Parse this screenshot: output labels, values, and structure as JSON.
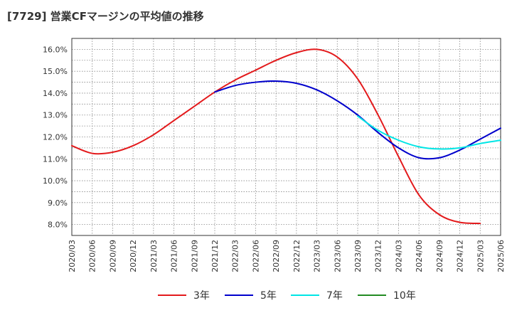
{
  "chart_data": {
    "type": "line",
    "title": "[7729]  営業CFマージンの平均値の推移",
    "xlabel": "",
    "ylabel": "",
    "ylim": [
      7.5,
      16.5
    ],
    "y_ticks": [
      8.0,
      9.0,
      10.0,
      11.0,
      12.0,
      13.0,
      14.0,
      15.0,
      16.0
    ],
    "y_tick_labels": [
      "8.0%",
      "9.0%",
      "10.0%",
      "11.0%",
      "12.0%",
      "13.0%",
      "14.0%",
      "15.0%",
      "16.0%"
    ],
    "x_tick_labels": [
      "2020/03",
      "2020/06",
      "2020/09",
      "2020/12",
      "2021/03",
      "2021/06",
      "2021/09",
      "2021/12",
      "2022/03",
      "2022/06",
      "2022/09",
      "2022/12",
      "2023/03",
      "2023/06",
      "2023/09",
      "2023/12",
      "2024/03",
      "2024/06",
      "2024/09",
      "2024/12",
      "2025/03",
      "2025/06"
    ],
    "grid": true,
    "legend_position": "bottom",
    "series": [
      {
        "name": "3年",
        "color": "#e31a1c",
        "values": [
          11.6,
          11.25,
          11.3,
          11.6,
          12.1,
          12.75,
          13.4,
          14.05,
          14.6,
          15.05,
          15.5,
          15.85,
          16.0,
          15.65,
          14.65,
          13.0,
          11.1,
          9.35,
          8.45,
          8.1,
          8.05,
          null
        ]
      },
      {
        "name": "5年",
        "color": "#0000cc",
        "values": [
          null,
          null,
          null,
          null,
          null,
          null,
          null,
          14.05,
          14.35,
          14.5,
          14.55,
          14.45,
          14.15,
          13.65,
          13.0,
          12.2,
          11.5,
          11.05,
          11.05,
          11.4,
          11.9,
          12.4
        ]
      },
      {
        "name": "7年",
        "color": "#00e5e5",
        "values": [
          null,
          null,
          null,
          null,
          null,
          null,
          null,
          null,
          null,
          null,
          null,
          null,
          null,
          null,
          12.95,
          12.3,
          11.85,
          11.55,
          11.45,
          11.5,
          11.7,
          11.85
        ]
      },
      {
        "name": "10年",
        "color": "#228b22",
        "values": []
      }
    ]
  }
}
